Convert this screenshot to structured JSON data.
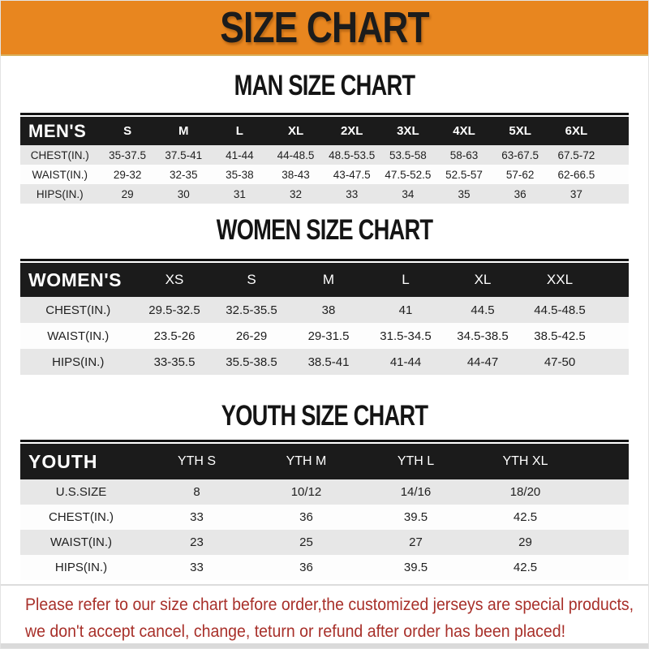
{
  "colors": {
    "banner_bg": "#E8861F",
    "banner_text": "#1C1C1C",
    "header_bar_bg": "#1B1B1B",
    "header_bar_text": "#FFFFFF",
    "row_alt_bg": "#E7E7E7",
    "body_text": "#1F1F1F",
    "footer_text": "#A8302A"
  },
  "banner": {
    "title": "SIZE CHART"
  },
  "sections": [
    {
      "id": "men",
      "title": "MAN SIZE CHART",
      "table": {
        "label": "MEN'S",
        "columns": [
          "S",
          "M",
          "L",
          "XL",
          "2XL",
          "3XL",
          "4XL",
          "5XL",
          "6XL"
        ],
        "rows": [
          {
            "label": "CHEST(IN.)",
            "values": [
              "35-37.5",
              "37.5-41",
              "41-44",
              "44-48.5",
              "48.5-53.5",
              "53.5-58",
              "58-63",
              "63-67.5",
              "67.5-72"
            ]
          },
          {
            "label": "WAIST(IN.)",
            "values": [
              "29-32",
              "32-35",
              "35-38",
              "38-43",
              "43-47.5",
              "47.5-52.5",
              "52.5-57",
              "57-62",
              "62-66.5"
            ]
          },
          {
            "label": "HIPS(IN.)",
            "values": [
              "29",
              "30",
              "31",
              "32",
              "33",
              "34",
              "35",
              "36",
              "37"
            ]
          }
        ]
      }
    },
    {
      "id": "women",
      "title": "WOMEN SIZE CHART",
      "table": {
        "label": "WOMEN'S",
        "columns": [
          "XS",
          "S",
          "M",
          "L",
          "XL",
          "XXL"
        ],
        "rows": [
          {
            "label": "CHEST(IN.)",
            "values": [
              "29.5-32.5",
              "32.5-35.5",
              "38",
              "41",
              "44.5",
              "44.5-48.5"
            ]
          },
          {
            "label": "WAIST(IN.)",
            "values": [
              "23.5-26",
              "26-29",
              "29-31.5",
              "31.5-34.5",
              "34.5-38.5",
              "38.5-42.5"
            ]
          },
          {
            "label": "HIPS(IN.)",
            "values": [
              "33-35.5",
              "35.5-38.5",
              "38.5-41",
              "41-44",
              "44-47",
              "47-50"
            ]
          }
        ]
      }
    },
    {
      "id": "youth",
      "title": "YOUTH SIZE CHART",
      "table": {
        "label": "YOUTH",
        "columns": [
          "YTH S",
          "YTH M",
          "YTH L",
          "YTH XL"
        ],
        "rows": [
          {
            "label": "U.S.SIZE",
            "values": [
              "8",
              "10/12",
              "14/16",
              "18/20"
            ]
          },
          {
            "label": "CHEST(IN.)",
            "values": [
              "33",
              "36",
              "39.5",
              "42.5"
            ]
          },
          {
            "label": "WAIST(IN.)",
            "values": [
              "23",
              "25",
              "27",
              "29"
            ]
          },
          {
            "label": "HIPS(IN.)",
            "values": [
              "33",
              "36",
              "39.5",
              "42.5"
            ]
          }
        ]
      }
    }
  ],
  "footer": {
    "line1": "Please refer to our size chart before order,the customized jerseys are special products,",
    "line2": "we don't accept cancel, change, teturn or refund after order has been placed!"
  }
}
